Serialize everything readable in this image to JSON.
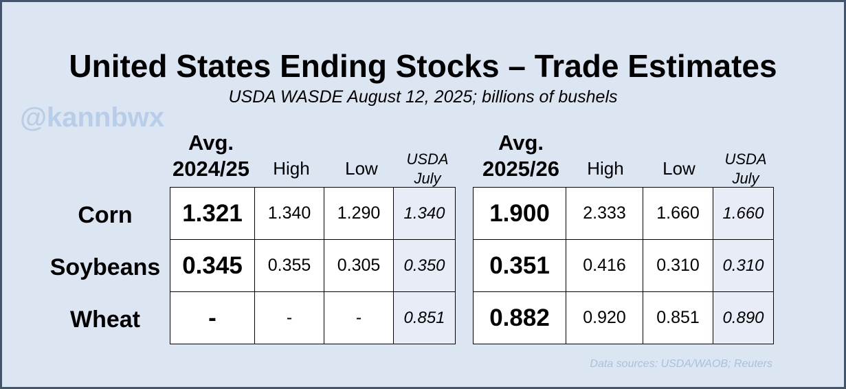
{
  "title": "United States Ending Stocks – Trade Estimates",
  "subtitle": "USDA WASDE August 12, 2025; billions of bushels",
  "watermark": "@kannbwx",
  "source": "Data sources: USDA/WAOB; Reuters",
  "row_labels": [
    "Corn",
    "Soybeans",
    "Wheat"
  ],
  "left_table": {
    "avg_header_line1": "Avg.",
    "avg_header_line2": "2024/25",
    "high_header": "High",
    "low_header": "Low",
    "usda_header_line1": "USDA",
    "usda_header_line2": "July",
    "rows": [
      {
        "avg": "1.321",
        "high": "1.340",
        "low": "1.290",
        "usda": "1.340"
      },
      {
        "avg": "0.345",
        "high": "0.355",
        "low": "0.305",
        "usda": "0.350"
      },
      {
        "avg": "-",
        "high": "-",
        "low": "-",
        "usda": "0.851"
      }
    ]
  },
  "right_table": {
    "avg_header_line1": "Avg.",
    "avg_header_line2": "2025/26",
    "high_header": "High",
    "low_header": "Low",
    "usda_header_line1": "USDA",
    "usda_header_line2": "July",
    "rows": [
      {
        "avg": "1.900",
        "high": "2.333",
        "low": "1.660",
        "usda": "1.660"
      },
      {
        "avg": "0.351",
        "high": "0.416",
        "low": "0.310",
        "usda": "0.310"
      },
      {
        "avg": "0.882",
        "high": "0.920",
        "low": "0.851",
        "usda": "0.890"
      }
    ]
  }
}
